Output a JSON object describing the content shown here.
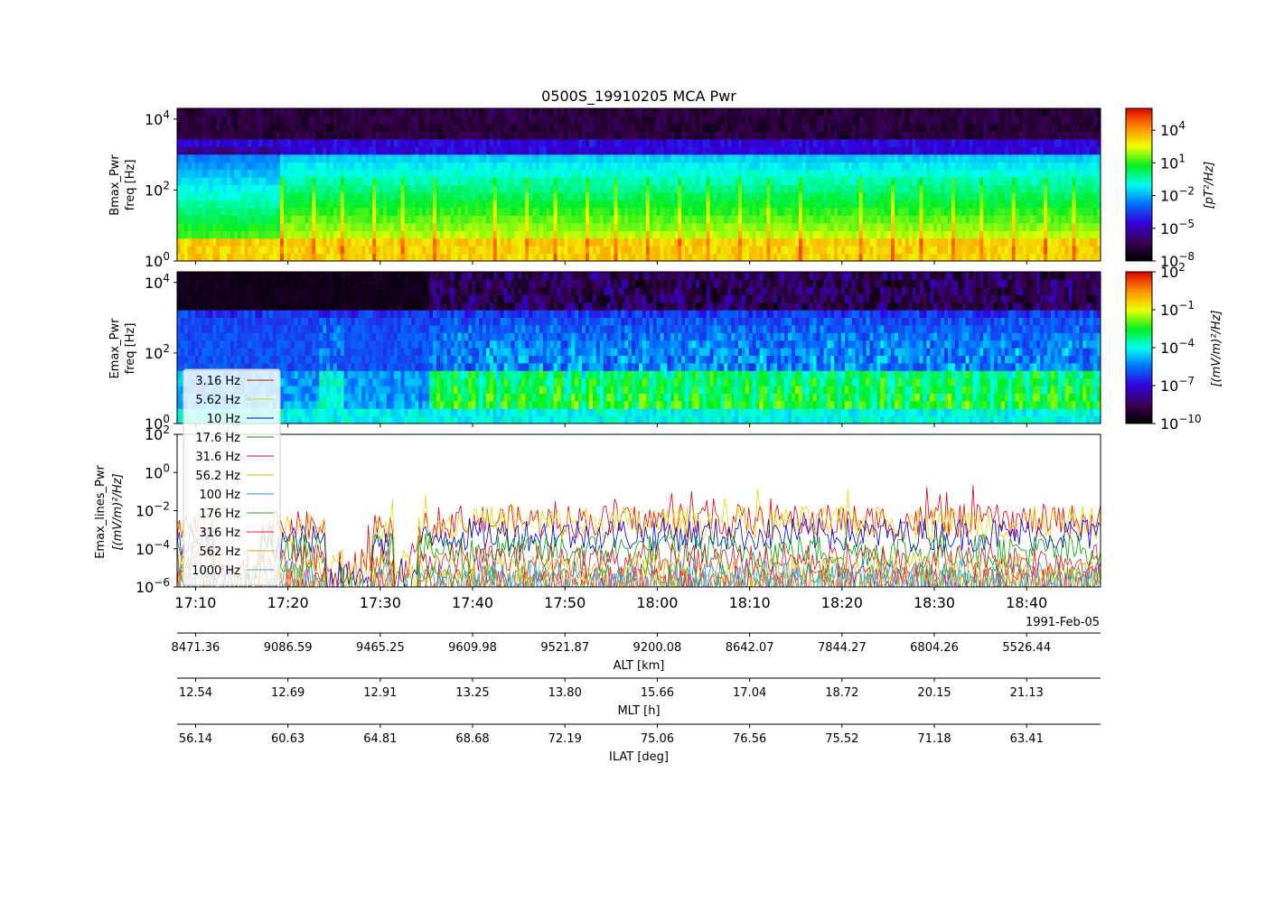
{
  "chart_data": [
    {
      "type": "heatmap",
      "panel": "bmax",
      "title": "0500S_19910205 MCA Pwr",
      "ylabel_line1": "Bmax_Pwr",
      "ylabel_line2": "freq [Hz]",
      "y_scale": "log",
      "ylim": [
        1,
        20000
      ],
      "y_ticks": [
        {
          "base": "10",
          "exp": "0"
        },
        {
          "base": "10",
          "exp": "2"
        },
        {
          "base": "10",
          "exp": "4"
        }
      ],
      "colorbar": {
        "scale": "log",
        "range": [
          1e-08,
          1000000.0
        ],
        "label": "[pT²/Hz]",
        "ticks": [
          {
            "base": "10",
            "exp": "4"
          },
          {
            "base": "10",
            "exp": "1"
          },
          {
            "base": "10",
            "exp": "−2"
          },
          {
            "base": "10",
            "exp": "−5"
          },
          {
            "base": "10",
            "exp": "−8"
          }
        ]
      }
    },
    {
      "type": "heatmap",
      "panel": "emax",
      "ylabel_line1": "Emax_Pwr",
      "ylabel_line2": "freq [Hz]",
      "y_scale": "log",
      "ylim": [
        1,
        20000
      ],
      "y_ticks": [
        {
          "base": "10",
          "exp": "0"
        },
        {
          "base": "10",
          "exp": "2"
        },
        {
          "base": "10",
          "exp": "4"
        }
      ],
      "colorbar": {
        "scale": "log",
        "range": [
          1e-10,
          100
        ],
        "label": "[(mV/m)²/Hz]",
        "ticks": [
          {
            "base": "10",
            "exp": "2"
          },
          {
            "base": "10",
            "exp": "−1"
          },
          {
            "base": "10",
            "exp": "−4"
          },
          {
            "base": "10",
            "exp": "−7"
          },
          {
            "base": "10",
            "exp": "−10"
          }
        ]
      }
    },
    {
      "type": "line",
      "panel": "emax_lines",
      "ylabel_line1": "Emax_lines_Pwr",
      "ylabel_line2": "[(mV/m)²/Hz]",
      "y_scale": "log",
      "ylim": [
        1e-06,
        100
      ],
      "y_ticks": [
        {
          "base": "10",
          "exp": "2"
        },
        {
          "base": "10",
          "exp": "0"
        },
        {
          "base": "10",
          "exp": "−2"
        },
        {
          "base": "10",
          "exp": "−4"
        },
        {
          "base": "10",
          "exp": "−6"
        }
      ],
      "legend_position": "upper-left",
      "series": [
        {
          "name": "3.16 Hz",
          "color": "#e8000b",
          "level": -2.9
        },
        {
          "name": "5.62 Hz",
          "color": "#e5d800",
          "level": -3.0
        },
        {
          "name": "10 Hz",
          "color": "#0000dd",
          "level": -3.6
        },
        {
          "name": "17.6 Hz",
          "color": "#00a000",
          "level": -4.1
        },
        {
          "name": "31.6 Hz",
          "color": "#dd1133",
          "level": -4.6
        },
        {
          "name": "56.2 Hz",
          "color": "#d4b800",
          "level": -5.1
        },
        {
          "name": "100 Hz",
          "color": "#1e90ff",
          "level": -5.5
        },
        {
          "name": "176 Hz",
          "color": "#22b022",
          "level": -5.7
        },
        {
          "name": "316 Hz",
          "color": "#ff1030",
          "level": -5.8
        },
        {
          "name": "562 Hz",
          "color": "#ff9900",
          "level": -5.9
        },
        {
          "name": "1000 Hz",
          "color": "#44aadd",
          "level": -6.0
        }
      ]
    }
  ],
  "x_axis": {
    "range_minutes": [
      1028,
      1128
    ],
    "tick_minutes": [
      1030,
      1040,
      1050,
      1060,
      1070,
      1080,
      1090,
      1100,
      1110,
      1120
    ],
    "tick_labels": [
      "17:10",
      "17:20",
      "17:30",
      "17:40",
      "17:50",
      "18:00",
      "18:10",
      "18:20",
      "18:30",
      "18:40"
    ],
    "date_label": "1991-Feb-05"
  },
  "ephemeris": [
    {
      "label": "ALT [km]",
      "values": [
        "8471.36",
        "9086.59",
        "9465.25",
        "9609.98",
        "9521.87",
        "9200.08",
        "8642.07",
        "7844.27",
        "6804.26",
        "5526.44"
      ]
    },
    {
      "label": "MLT [h]",
      "values": [
        "12.54",
        "12.69",
        "12.91",
        "13.25",
        "13.80",
        "15.66",
        "17.04",
        "18.72",
        "20.15",
        "21.13"
      ]
    },
    {
      "label": "ILAT [deg]",
      "values": [
        "56.14",
        "60.63",
        "64.81",
        "68.68",
        "72.19",
        "75.06",
        "76.56",
        "75.52",
        "71.18",
        "63.41"
      ]
    }
  ]
}
